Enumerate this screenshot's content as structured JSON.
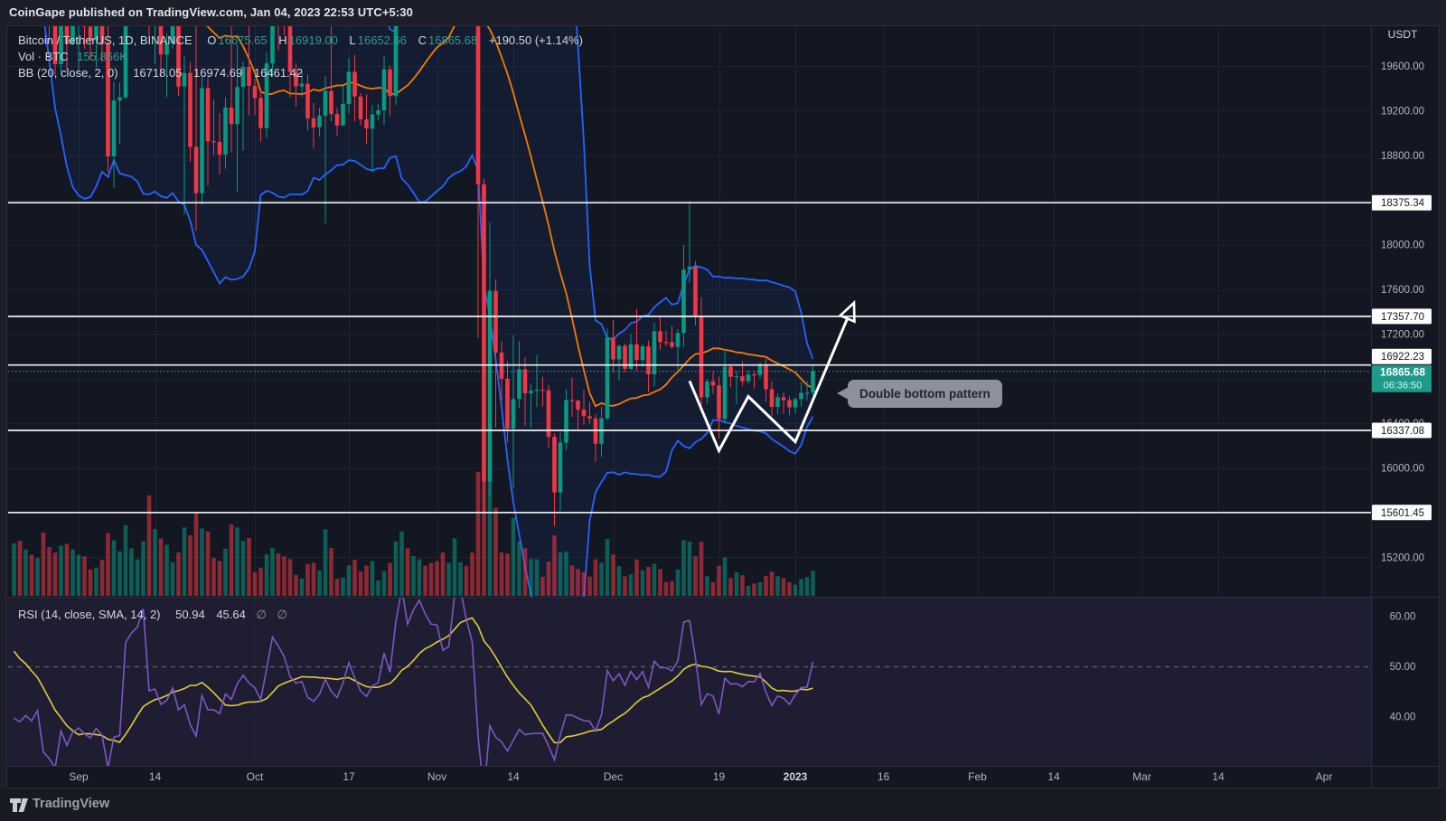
{
  "watermark": "CoinGape published on TradingView.com, Jan 04, 2023 22:53 UTC+5:30",
  "symbol_row": {
    "title": "Bitcoin / TetherUS, 1D, BINANCE",
    "o_label": "O",
    "open": "16675.65",
    "h_label": "H",
    "high": "16919.00",
    "l_label": "L",
    "low": "16652.66",
    "c_label": "C",
    "close": "16865.68",
    "change": "+190.50 (+1.14%)"
  },
  "volume_row": {
    "label": "Vol · BTC",
    "value": "155.866K"
  },
  "bb_row": {
    "label": "BB (20, close, 2, 0)",
    "basis": "16718.05",
    "upper": "16974.69",
    "lower": "16461.42"
  },
  "rsi_row": {
    "label": "RSI (14, close, SMA, 14, 2)",
    "rsi": "50.94",
    "sma": "45.64",
    "empty1": "∅",
    "empty2": "∅"
  },
  "callout": {
    "text": "Double bottom pattern"
  },
  "footer": {
    "brand": "TradingView"
  },
  "price_axis": {
    "currency": "USDT",
    "ticks": [
      19600,
      19200,
      18800,
      18400,
      18000,
      17600,
      17200,
      16800,
      16400,
      16000,
      15600,
      15200
    ]
  },
  "rsi_axis": {
    "ticks": [
      60,
      50,
      40
    ],
    "midline": 50
  },
  "levels": [
    18375.34,
    17357.7,
    16922.23,
    16337.08,
    15601.45
  ],
  "last_price": {
    "value": 16865.68,
    "label": "16865.68",
    "countdown": "06:36:50"
  },
  "time_axis": [
    {
      "label": "Sep",
      "d": "2022-09-01"
    },
    {
      "label": "14",
      "d": "2022-09-14"
    },
    {
      "label": "Oct",
      "d": "2022-10-01"
    },
    {
      "label": "17",
      "d": "2022-10-17"
    },
    {
      "label": "Nov",
      "d": "2022-11-01"
    },
    {
      "label": "14",
      "d": "2022-11-14"
    },
    {
      "label": "Dec",
      "d": "2022-12-01"
    },
    {
      "label": "19",
      "d": "2022-12-19"
    },
    {
      "label": "2023",
      "d": "2023-01-01",
      "bold": true
    },
    {
      "label": "16",
      "d": "2023-01-16"
    },
    {
      "label": "Feb",
      "d": "2023-02-01"
    },
    {
      "label": "14",
      "d": "2023-02-14"
    },
    {
      "label": "Mar",
      "d": "2023-03-01"
    },
    {
      "label": "14",
      "d": "2023-03-14"
    },
    {
      "label": "Apr",
      "d": "2023-04-01"
    }
  ],
  "colors": {
    "bg_chart": "#131722",
    "bg_outer": "#1c1f2a",
    "bg_footer": "#171a23",
    "border": "#2a2e39",
    "grid": "#1d2230",
    "up": "#089981",
    "down": "#f23645",
    "vol_up": "rgba(8,153,129,0.55)",
    "vol_down": "rgba(242,54,69,0.55)",
    "bb_band": "#2962ff",
    "bb_basis": "#f57c00",
    "bb_fill": "rgba(41,98,255,0.07)",
    "rsi_line": "#7e57c2",
    "rsi_ma": "#e3cb3d",
    "rsi_fill": "rgba(126,87,194,0.10)",
    "rsi_mid": "#6a6e79",
    "level_line": "#f0f2f5",
    "level_text": "#131722",
    "last_price_bg": "#1e9a8a",
    "axis_text": "#b2b5be",
    "annotation": "#ffffff"
  },
  "chart_data": {
    "type": "candlestick",
    "title": "Bitcoin / TetherUS, 1D, BINANCE",
    "xlabel": "date",
    "ylabel": "price (USDT)",
    "xlim": [
      "2022-08-20",
      "2023-04-09"
    ],
    "ylim": [
      14847,
      19964
    ],
    "rsi_ylim": [
      30.2,
      63.7
    ],
    "volume_axis_max_k": 840,
    "indicators": [
      {
        "name": "Bollinger Bands",
        "params": [
          20,
          "close",
          2,
          0
        ]
      },
      {
        "name": "Volume"
      },
      {
        "name": "RSI",
        "params": [
          14,
          "close",
          "SMA",
          14,
          2
        ]
      }
    ],
    "warmup_closes": [
      22465,
      21310,
      21255,
      22930,
      23843,
      23773,
      23645,
      23303,
      23270,
      22978,
      22846,
      22630,
      23312,
      22954,
      23175,
      23810,
      23150,
      23947,
      23957,
      24402,
      24441,
      24305,
      24095,
      23854,
      23342,
      23191,
      20838,
      21140
    ],
    "columns": [
      "date",
      "open",
      "high",
      "low",
      "close",
      "volume_k"
    ],
    "candles": [
      [
        "2022-08-21",
        21141,
        21800,
        21063,
        21516,
        325
      ],
      [
        "2022-08-22",
        21516,
        21700,
        20897,
        21398,
        341
      ],
      [
        "2022-08-23",
        21398,
        21900,
        21157,
        21528,
        287
      ],
      [
        "2022-08-24",
        21528,
        21800,
        21151,
        21368,
        254
      ],
      [
        "2022-08-25",
        21368,
        21819,
        21319,
        21559,
        236
      ],
      [
        "2022-08-26",
        21559,
        21878,
        20107,
        20241,
        392
      ],
      [
        "2022-08-27",
        20241,
        20399,
        19811,
        19986,
        302
      ],
      [
        "2022-08-28",
        19986,
        20171,
        19520,
        19616,
        268
      ],
      [
        "2022-08-29",
        19616,
        20432,
        19546,
        20297,
        311
      ],
      [
        "2022-08-30",
        20297,
        20576,
        19567,
        19796,
        322
      ],
      [
        "2022-08-31",
        19796,
        20480,
        19790,
        20050,
        286
      ],
      [
        "2022-09-01",
        20050,
        20200,
        19561,
        20127,
        254
      ],
      [
        "2022-09-02",
        20127,
        20444,
        19755,
        19952,
        245
      ],
      [
        "2022-09-03",
        19952,
        20050,
        19654,
        19832,
        164
      ],
      [
        "2022-09-04",
        19832,
        20025,
        19588,
        19986,
        176
      ],
      [
        "2022-09-05",
        19986,
        20060,
        19635,
        19794,
        224
      ],
      [
        "2022-09-06",
        19794,
        20180,
        18649,
        18790,
        389
      ],
      [
        "2022-09-07",
        18790,
        19461,
        18510,
        19290,
        344
      ],
      [
        "2022-09-08",
        19290,
        19450,
        18900,
        19320,
        276
      ],
      [
        "2022-09-09",
        19320,
        21430,
        19297,
        21360,
        438
      ],
      [
        "2022-09-10",
        21360,
        21790,
        21111,
        21651,
        294
      ],
      [
        "2022-09-11",
        21651,
        21860,
        21346,
        21827,
        226
      ],
      [
        "2022-09-12",
        21827,
        22488,
        21531,
        22395,
        338
      ],
      [
        "2022-09-13",
        22395,
        22799,
        19861,
        20173,
        622
      ],
      [
        "2022-09-14",
        20173,
        20544,
        19617,
        20226,
        415
      ],
      [
        "2022-09-15",
        20226,
        20330,
        19500,
        19701,
        355
      ],
      [
        "2022-09-16",
        19701,
        19892,
        19321,
        19803,
        317
      ],
      [
        "2022-09-17",
        19803,
        20182,
        19756,
        20113,
        208
      ],
      [
        "2022-09-18",
        20113,
        20117,
        19335,
        19416,
        269
      ],
      [
        "2022-09-19",
        19416,
        19688,
        18271,
        19537,
        424
      ],
      [
        "2022-09-20",
        19537,
        19634,
        18742,
        18875,
        375
      ],
      [
        "2022-09-21",
        18875,
        19956,
        18125,
        18461,
        520
      ],
      [
        "2022-09-22",
        18461,
        19500,
        18356,
        19401,
        417
      ],
      [
        "2022-09-23",
        19401,
        19499,
        18529,
        18925,
        398
      ],
      [
        "2022-09-24",
        18925,
        19300,
        18803,
        18921,
        235
      ],
      [
        "2022-09-25",
        18921,
        19178,
        18629,
        18807,
        216
      ],
      [
        "2022-09-26",
        18807,
        19320,
        18680,
        19227,
        292
      ],
      [
        "2022-09-27",
        19227,
        20385,
        18822,
        19079,
        443
      ],
      [
        "2022-09-28",
        19079,
        19790,
        18471,
        19412,
        424
      ],
      [
        "2022-09-29",
        19412,
        19640,
        18843,
        19591,
        341
      ],
      [
        "2022-09-30",
        19591,
        20175,
        19155,
        19422,
        358
      ],
      [
        "2022-10-01",
        19422,
        19484,
        19160,
        19312,
        147
      ],
      [
        "2022-10-02",
        19312,
        19398,
        18920,
        19044,
        175
      ],
      [
        "2022-10-03",
        19044,
        19717,
        18958,
        19623,
        256
      ],
      [
        "2022-10-04",
        19623,
        20475,
        19500,
        20336,
        298
      ],
      [
        "2022-10-05",
        20336,
        20365,
        19735,
        20160,
        263
      ],
      [
        "2022-10-06",
        20160,
        20456,
        19871,
        19955,
        245
      ],
      [
        "2022-10-07",
        19955,
        20050,
        19320,
        19546,
        228
      ],
      [
        "2022-10-08",
        19546,
        19628,
        19236,
        19417,
        128
      ],
      [
        "2022-10-09",
        19417,
        19558,
        19321,
        19441,
        107
      ],
      [
        "2022-10-10",
        19441,
        19525,
        19021,
        19131,
        198
      ],
      [
        "2022-10-11",
        19131,
        19268,
        18861,
        19051,
        204
      ],
      [
        "2022-10-12",
        19051,
        19227,
        18968,
        19155,
        158
      ],
      [
        "2022-10-13",
        19155,
        19513,
        18190,
        19377,
        412
      ],
      [
        "2022-10-14",
        19377,
        19954,
        19106,
        19170,
        296
      ],
      [
        "2022-10-15",
        19170,
        19228,
        18975,
        19067,
        105
      ],
      [
        "2022-10-16",
        19067,
        19421,
        19063,
        19260,
        113
      ],
      [
        "2022-10-17",
        19260,
        19672,
        19171,
        19548,
        189
      ],
      [
        "2022-10-18",
        19548,
        19699,
        19103,
        19327,
        224
      ],
      [
        "2022-10-19",
        19327,
        19356,
        19066,
        19122,
        152
      ],
      [
        "2022-10-20",
        19122,
        19348,
        18900,
        19040,
        187
      ],
      [
        "2022-10-21",
        19040,
        19247,
        18650,
        19166,
        216
      ],
      [
        "2022-10-22",
        19166,
        19257,
        19115,
        19203,
        96
      ],
      [
        "2022-10-23",
        19203,
        19695,
        19070,
        19570,
        153
      ],
      [
        "2022-10-24",
        19570,
        19601,
        19157,
        19330,
        204
      ],
      [
        "2022-10-25",
        19330,
        20415,
        19252,
        20080,
        337
      ],
      [
        "2022-10-26",
        20080,
        21022,
        20053,
        20773,
        398
      ],
      [
        "2022-10-27",
        20773,
        20879,
        20192,
        20290,
        294
      ],
      [
        "2022-10-28",
        20290,
        20755,
        20000,
        20593,
        246
      ],
      [
        "2022-10-29",
        20593,
        21085,
        20554,
        20806,
        228
      ],
      [
        "2022-10-30",
        20806,
        20931,
        20388,
        20627,
        186
      ],
      [
        "2022-10-31",
        20627,
        20825,
        20238,
        20490,
        204
      ],
      [
        "2022-11-01",
        20490,
        20700,
        20331,
        20480,
        215
      ],
      [
        "2022-11-02",
        20480,
        20800,
        20050,
        20150,
        268
      ],
      [
        "2022-11-03",
        20150,
        20381,
        20021,
        20206,
        204
      ],
      [
        "2022-11-04",
        20206,
        21300,
        20172,
        21148,
        357
      ],
      [
        "2022-11-05",
        21148,
        21480,
        21065,
        21299,
        208
      ],
      [
        "2022-11-06",
        21299,
        21360,
        20884,
        20905,
        186
      ],
      [
        "2022-11-07",
        20905,
        21069,
        20403,
        20590,
        268
      ],
      [
        "2022-11-08",
        20590,
        20700,
        17166,
        18541,
        768
      ],
      [
        "2022-11-09",
        18541,
        18590,
        15588,
        15880,
        812
      ],
      [
        "2022-11-10",
        15880,
        18199,
        15754,
        17586,
        745
      ],
      [
        "2022-11-11",
        17586,
        17690,
        16361,
        17034,
        546
      ],
      [
        "2022-11-12",
        17034,
        17134,
        16601,
        16799,
        268
      ],
      [
        "2022-11-13",
        16799,
        16954,
        16229,
        16353,
        262
      ],
      [
        "2022-11-14",
        16353,
        17190,
        15815,
        16618,
        484
      ],
      [
        "2022-11-15",
        16618,
        17134,
        16538,
        16884,
        338
      ],
      [
        "2022-11-16",
        16884,
        16990,
        16378,
        16669,
        295
      ],
      [
        "2022-11-17",
        16669,
        16754,
        16360,
        16692,
        229
      ],
      [
        "2022-11-18",
        16692,
        17011,
        16546,
        16700,
        226
      ],
      [
        "2022-11-19",
        16700,
        16815,
        16551,
        16697,
        118
      ],
      [
        "2022-11-20",
        16697,
        16745,
        16180,
        16279,
        213
      ],
      [
        "2022-11-21",
        16279,
        16306,
        15476,
        15781,
        374
      ],
      [
        "2022-11-22",
        15781,
        16315,
        15616,
        16228,
        269
      ],
      [
        "2022-11-23",
        16228,
        16705,
        16160,
        16609,
        274
      ],
      [
        "2022-11-24",
        16609,
        16810,
        16458,
        16603,
        188
      ],
      [
        "2022-11-25",
        16603,
        16613,
        16343,
        16522,
        166
      ],
      [
        "2022-11-26",
        16522,
        16697,
        16386,
        16464,
        146
      ],
      [
        "2022-11-27",
        16464,
        16594,
        16400,
        16444,
        120
      ],
      [
        "2022-11-28",
        16444,
        16486,
        16054,
        16217,
        227
      ],
      [
        "2022-11-29",
        16217,
        16548,
        16100,
        16444,
        206
      ],
      [
        "2022-11-30",
        16444,
        17250,
        16428,
        17168,
        352
      ],
      [
        "2022-12-01",
        17168,
        17324,
        16855,
        16972,
        257
      ],
      [
        "2022-12-02",
        16972,
        17105,
        16787,
        17093,
        184
      ],
      [
        "2022-12-03",
        17093,
        17116,
        16858,
        16888,
        121
      ],
      [
        "2022-12-04",
        16888,
        17202,
        16881,
        17107,
        134
      ],
      [
        "2022-12-05",
        17107,
        17424,
        16872,
        16967,
        226
      ],
      [
        "2022-12-06",
        16967,
        17107,
        16906,
        17089,
        158
      ],
      [
        "2022-12-07",
        17089,
        17142,
        16678,
        16839,
        180
      ],
      [
        "2022-12-08",
        16839,
        17300,
        16733,
        17225,
        198
      ],
      [
        "2022-12-09",
        17225,
        17360,
        17058,
        17128,
        165
      ],
      [
        "2022-12-10",
        17128,
        17227,
        17092,
        17127,
        86
      ],
      [
        "2022-12-11",
        17127,
        17270,
        17071,
        17085,
        92
      ],
      [
        "2022-12-12",
        17085,
        17241,
        16871,
        17209,
        163
      ],
      [
        "2022-12-13",
        17209,
        17999,
        17080,
        17776,
        345
      ],
      [
        "2022-12-14",
        17776,
        18387,
        17660,
        17803,
        335
      ],
      [
        "2022-12-15",
        17803,
        17854,
        17276,
        17356,
        246
      ],
      [
        "2022-12-16",
        17356,
        17528,
        16527,
        16632,
        336
      ],
      [
        "2022-12-17",
        16632,
        16795,
        16579,
        16776,
        122
      ],
      [
        "2022-12-18",
        16776,
        16866,
        16663,
        16739,
        85
      ],
      [
        "2022-12-19",
        16739,
        16820,
        16262,
        16440,
        186
      ],
      [
        "2022-12-20",
        16440,
        17061,
        16397,
        16906,
        238
      ],
      [
        "2022-12-21",
        16906,
        16925,
        16725,
        16817,
        110
      ],
      [
        "2022-12-22",
        16817,
        16868,
        16571,
        16821,
        146
      ],
      [
        "2022-12-23",
        16821,
        16955,
        16736,
        16778,
        128
      ],
      [
        "2022-12-24",
        16778,
        16878,
        16757,
        16838,
        62
      ],
      [
        "2022-12-25",
        16838,
        16861,
        16712,
        16832,
        76
      ],
      [
        "2022-12-26",
        16832,
        16945,
        16800,
        16919,
        84
      ],
      [
        "2022-12-27",
        16919,
        16980,
        16590,
        16706,
        124
      ],
      [
        "2022-12-28",
        16706,
        16775,
        16465,
        16547,
        150
      ],
      [
        "2022-12-29",
        16547,
        16669,
        16479,
        16633,
        122
      ],
      [
        "2022-12-30",
        16633,
        16677,
        16488,
        16607,
        110
      ],
      [
        "2022-12-31",
        16607,
        16645,
        16470,
        16542,
        84
      ],
      [
        "2023-01-01",
        16542,
        16631,
        16490,
        16616,
        70
      ],
      [
        "2023-01-02",
        16616,
        16772,
        16548,
        16672,
        104
      ],
      [
        "2023-01-03",
        16672,
        16780,
        16605,
        16675,
        116
      ],
      [
        "2023-01-04",
        16675.65,
        16919.0,
        16652.66,
        16865.68,
        155.866
      ]
    ],
    "zigzag": [
      {
        "d": "2022-12-14",
        "p": 16780
      },
      {
        "d": "2022-12-19",
        "p": 16155
      },
      {
        "d": "2022-12-24",
        "p": 16640
      },
      {
        "d": "2023-01-01",
        "p": 16235
      },
      {
        "d": "2023-01-11",
        "p": 17480
      }
    ]
  }
}
